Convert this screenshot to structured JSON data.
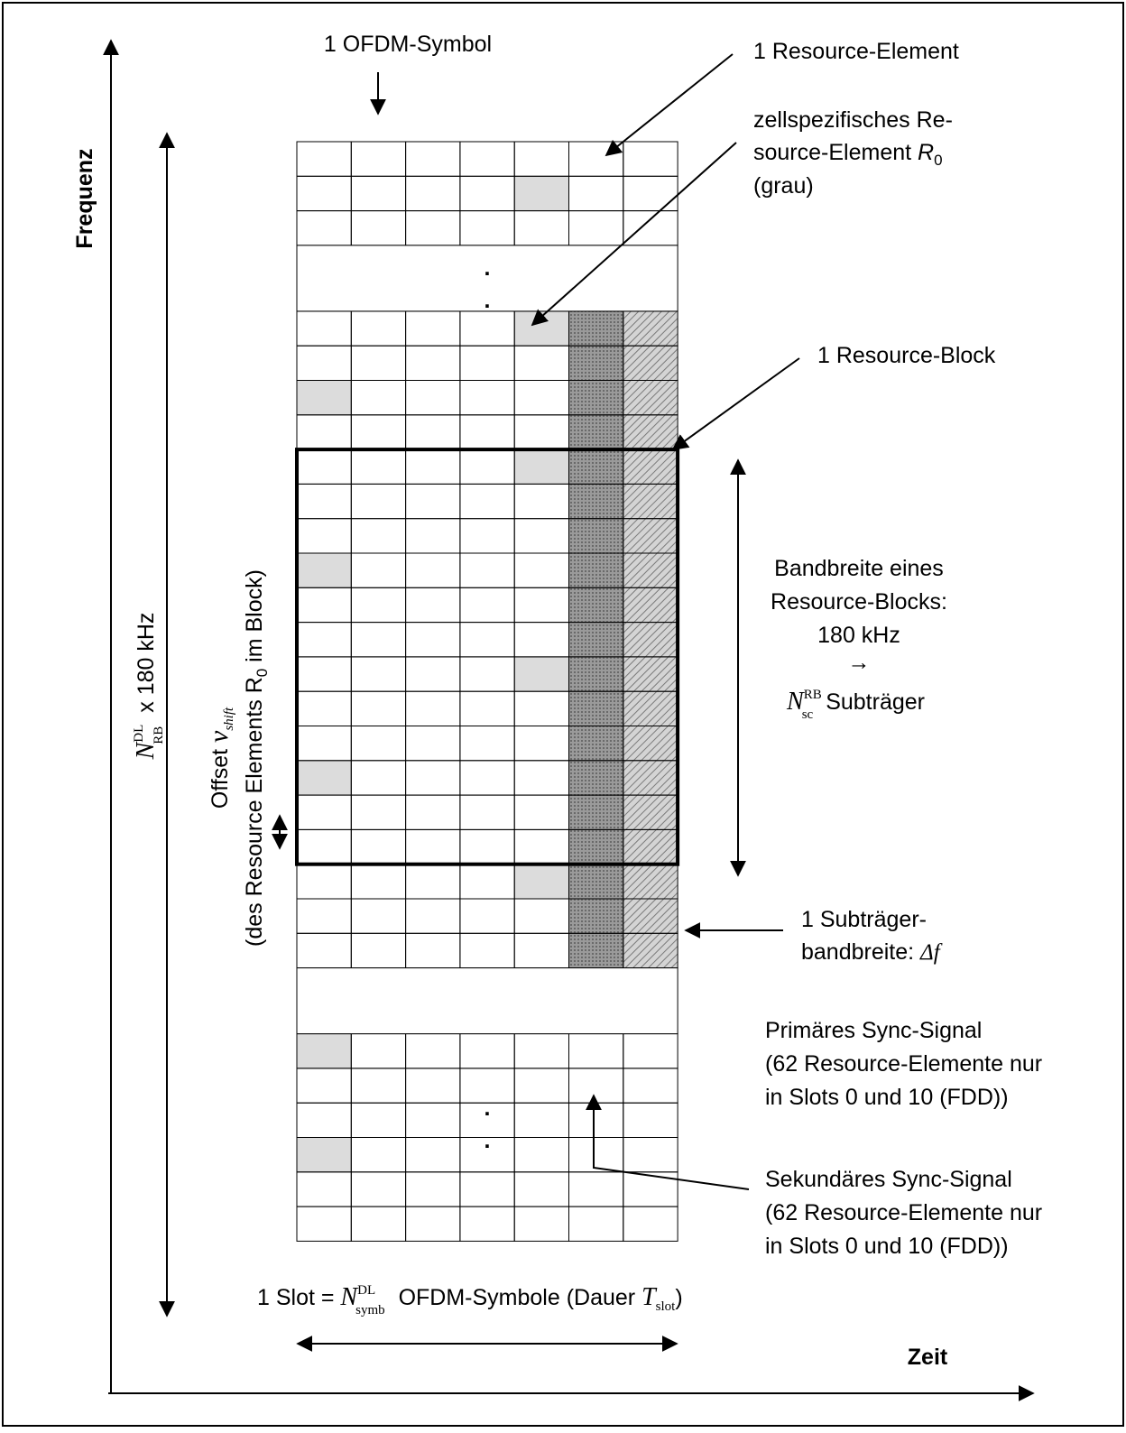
{
  "axes": {
    "frequency_label": "Frequenz",
    "time_label": "Zeit"
  },
  "labels": {
    "ofdm_symbol": "1 OFDM-Symbol",
    "resource_element": "1 Resource-Element",
    "cell_specific_line1": "zellspezifisches Re-",
    "cell_specific_line2_prefix": "source-Element ",
    "cell_specific_symbol": "R",
    "cell_specific_subscript": "0",
    "cell_specific_line3": "(grau)",
    "resource_block": "1 Resource-Block",
    "bandwidth_line1": "Bandbreite eines",
    "bandwidth_line2": "Resource-Blocks:",
    "bandwidth_line3": "180 kHz",
    "bandwidth_arrow": "→",
    "bandwidth_n": "N",
    "bandwidth_n_sup": "RB",
    "bandwidth_n_sub": "sc",
    "bandwidth_subcarrier": "Subträger",
    "subcarrier_line1": "1 Subträger-",
    "subcarrier_line2": "bandbreite: ",
    "subcarrier_delta": "Δf",
    "primary_line1": "Primäres Sync-Signal",
    "primary_line2": "(62 Resource-Elemente nur",
    "primary_line3": "in Slots 0 und 10 (FDD))",
    "secondary_line1": "Sekundäres Sync-Signal",
    "secondary_line2": "(62 Resource-Elemente nur",
    "secondary_line3": "in Slots 0 und 10 (FDD))",
    "slot_prefix": "1 Slot = ",
    "slot_n": "N",
    "slot_n_sup": "DL",
    "slot_n_sub": "symb",
    "slot_middle": " OFDM-Symbole (Dauer ",
    "slot_t": "T",
    "slot_t_sub": "slot",
    "slot_suffix": ")",
    "freq_total_n": "N",
    "freq_total_sup": "DL",
    "freq_total_sub": "RB",
    "freq_total_suffix": " x 180 kHz",
    "offset_prefix": "Offset ",
    "offset_nu": "ν",
    "offset_sub": "shift",
    "offset_line2_a": "(des Resource Elements R",
    "offset_line2_sub": "0",
    "offset_line2_b": " im Block)",
    "ellipsis_dot": "."
  },
  "grid": {
    "columns": 7,
    "ellipsis_after_rows": [
      3,
      22
    ],
    "total_rows": 28,
    "reference_signal_cells": [
      [
        1,
        4
      ],
      [
        3,
        4
      ],
      [
        5,
        0
      ],
      [
        7,
        4
      ],
      [
        10,
        0
      ],
      [
        13,
        4
      ],
      [
        16,
        0
      ],
      [
        19,
        4
      ],
      [
        22,
        0
      ],
      [
        25,
        0
      ]
    ],
    "primary_sync_column": 6,
    "secondary_sync_column": 5,
    "sync_rows_start": 3,
    "sync_rows_end": 22,
    "resource_block_rows": [
      7,
      18
    ],
    "colors": {
      "reference_signal": "#dcdcdc",
      "secondary_sync": "#8c8c8c",
      "primary_sync": "#c4c4c4",
      "line": "#000000"
    }
  }
}
